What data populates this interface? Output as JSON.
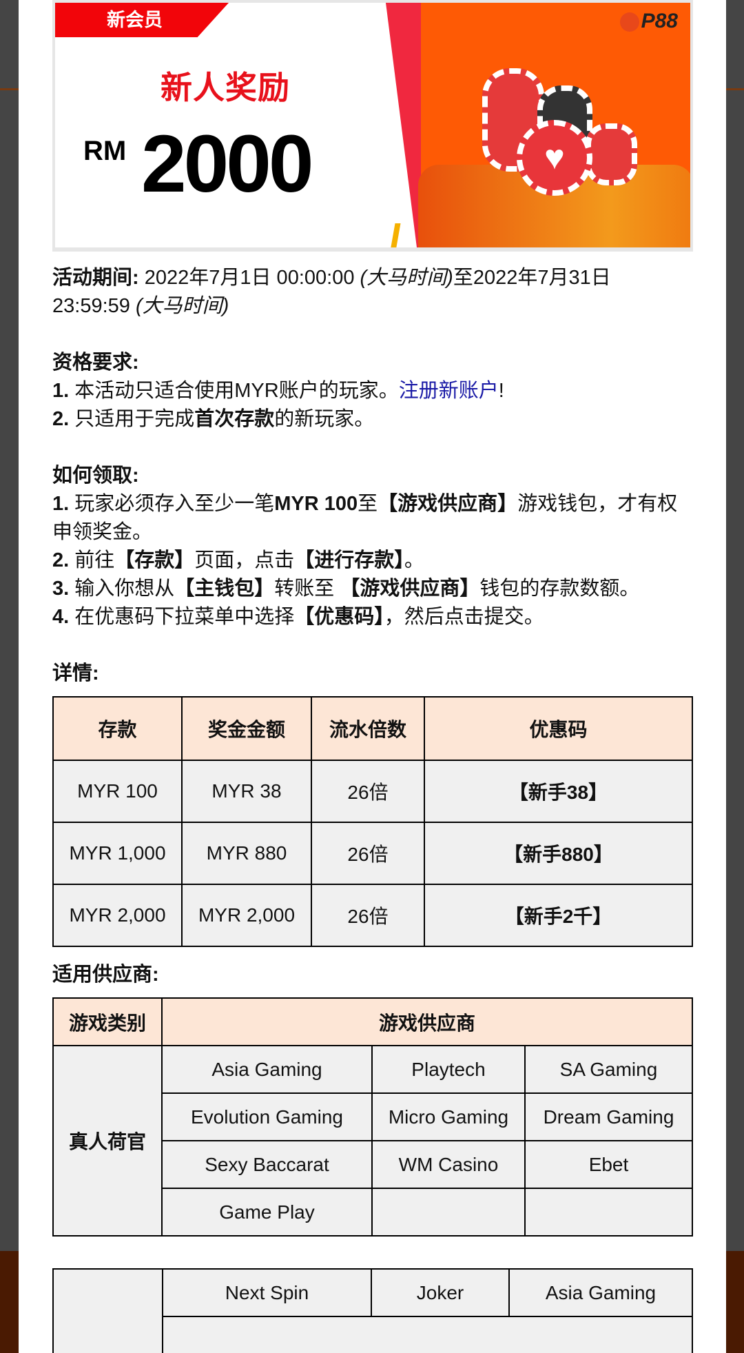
{
  "banner": {
    "tag": "新会员",
    "title": "新人奖励",
    "currency": "RM",
    "amount": "2000",
    "logo": "P88"
  },
  "period": {
    "label": "活动期间:",
    "start": "2022年7月1日 00:00:00",
    "tz1": "(大马时间)",
    "to": "至2022年7月31日 23:59:59",
    "tz2": "(大马时间)"
  },
  "eligibility": {
    "label": "资格要求:",
    "item1": {
      "num": "1.",
      "text": "本活动只适合使用MYR账户的玩家。",
      "link": "注册新账户",
      "suffix": "!"
    },
    "item2": {
      "num": "2.",
      "pre": "只适用于完成",
      "bold": "首次存款",
      "post": "的新玩家。"
    }
  },
  "howto": {
    "label": "如何领取:",
    "s1": {
      "num": "1.",
      "a": "玩家必须存入至少一笔",
      "b": "MYR 100",
      "c": "至",
      "d": "【游戏供应商】",
      "e": "游戏钱包，才有权申领奖金。"
    },
    "s2": {
      "num": "2.",
      "a": "前往",
      "b": "【存款】",
      "c": "页面，点击",
      "d": "【进行存款】",
      "e": "。"
    },
    "s3": {
      "num": "3.",
      "a": "输入你想从",
      "b": "【主钱包】",
      "c": "转账至 ",
      "d": "【游戏供应商】",
      "e": "钱包的存款数额。"
    },
    "s4": {
      "num": "4.",
      "a": "在优惠码下拉菜单中选择",
      "b": "【优惠码】",
      "c": "，然后点击提交。"
    }
  },
  "details": {
    "label": "详情:",
    "headers": [
      "存款",
      "奖金金额",
      "流水倍数",
      "优惠码"
    ],
    "rows": [
      [
        "MYR 100",
        "MYR 38",
        "26倍",
        "【新手38】"
      ],
      [
        "MYR 1,000",
        "MYR 880",
        "26倍",
        "【新手880】"
      ],
      [
        "MYR 2,000",
        "MYR 2,000",
        "26倍",
        "【新手2千】"
      ]
    ]
  },
  "providers": {
    "label": "适用供应商:",
    "headers": [
      "游戏类别",
      "游戏供应商"
    ],
    "category": "真人荷官",
    "rows": [
      [
        "Asia Gaming",
        "Playtech",
        "SA Gaming"
      ],
      [
        "Evolution Gaming",
        "Micro Gaming",
        "Dream Gaming"
      ],
      [
        "Sexy Baccarat",
        "WM Casino",
        "Ebet"
      ],
      [
        "Game Play",
        "",
        ""
      ]
    ]
  },
  "providers2": {
    "rows": [
      [
        "Next Spin",
        "Joker",
        "Asia Gaming"
      ]
    ]
  }
}
